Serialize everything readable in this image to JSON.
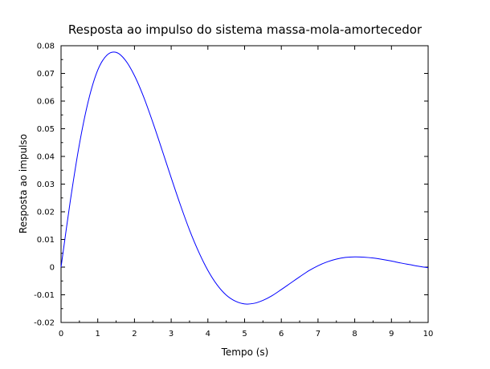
{
  "chart_data": {
    "type": "line",
    "title": "Resposta ao impulso do sistema massa-mola-amortecedor",
    "xlabel": "Tempo (s)",
    "ylabel": "Resposta ao impulso",
    "xlim": [
      0,
      10
    ],
    "ylim": [
      -0.02,
      0.08
    ],
    "x_ticks": [
      0,
      1,
      2,
      3,
      4,
      5,
      6,
      7,
      8,
      9,
      10
    ],
    "x_tick_labels": [
      "0",
      "1",
      "2",
      "3",
      "4",
      "5",
      "6",
      "7",
      "8",
      "9",
      "10"
    ],
    "y_ticks": [
      -0.02,
      -0.01,
      0,
      0.01,
      0.02,
      0.03,
      0.04,
      0.05,
      0.06,
      0.07,
      0.08
    ],
    "y_tick_labels": [
      "-0.02",
      "-0.01",
      "0",
      "0.01",
      "0.02",
      "0.03",
      "0.04",
      "0.05",
      "0.06",
      "0.07",
      "0.08"
    ],
    "grid": false,
    "legend": "none",
    "series": [
      {
        "color": "#0000ff",
        "x": [
          0,
          0.25,
          0.5,
          0.75,
          1.0,
          1.25,
          1.5,
          1.75,
          2.0,
          2.25,
          2.5,
          2.75,
          3.0,
          3.25,
          3.5,
          3.75,
          4.0,
          4.25,
          4.5,
          4.75,
          5.0,
          5.25,
          5.5,
          5.75,
          6.0,
          6.25,
          6.5,
          6.75,
          7.0,
          7.25,
          7.5,
          7.75,
          8.0,
          8.25,
          8.5,
          8.75,
          9.0,
          9.25,
          9.5,
          9.75,
          10.0
        ],
        "y": [
          0,
          0.0237,
          0.0444,
          0.0604,
          0.0712,
          0.0766,
          0.0776,
          0.0748,
          0.0692,
          0.0615,
          0.0523,
          0.0424,
          0.0323,
          0.0225,
          0.0134,
          0.0055,
          -0.0012,
          -0.0064,
          -0.0101,
          -0.0123,
          -0.0133,
          -0.0131,
          -0.012,
          -0.0103,
          -0.0081,
          -0.0058,
          -0.0035,
          -0.0013,
          0.0005,
          0.0019,
          0.0029,
          0.0035,
          0.0037,
          0.0036,
          0.0033,
          0.0028,
          0.0022,
          0.0015,
          0.0009,
          0.0003,
          -0.0002
        ]
      }
    ]
  }
}
